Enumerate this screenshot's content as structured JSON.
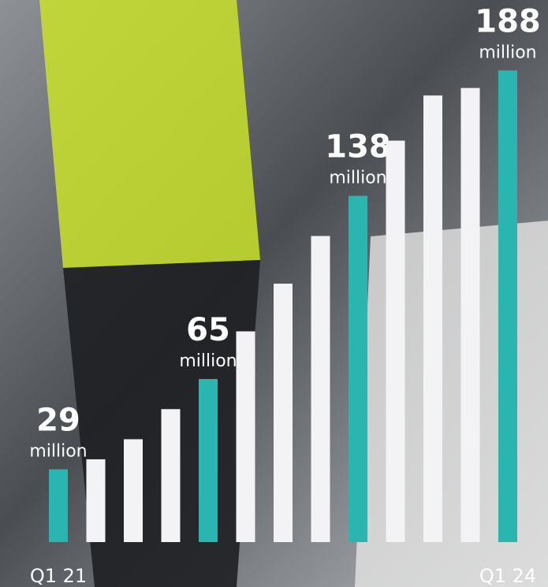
{
  "chart_data": {
    "type": "bar",
    "categories": [
      "Q1 21",
      null,
      null,
      null,
      null,
      null,
      null,
      null,
      null,
      null,
      null,
      null,
      "Q1 24"
    ],
    "values": [
      29,
      33,
      41,
      53,
      65,
      84,
      103,
      122,
      138,
      160,
      178,
      181,
      188
    ],
    "highlight": [
      true,
      false,
      false,
      false,
      true,
      false,
      false,
      false,
      true,
      false,
      false,
      false,
      true
    ],
    "highlight_color": "#2bb5b0",
    "color": "#f3f3f6",
    "unit_label": "million",
    "ylim": [
      0,
      190
    ]
  }
}
